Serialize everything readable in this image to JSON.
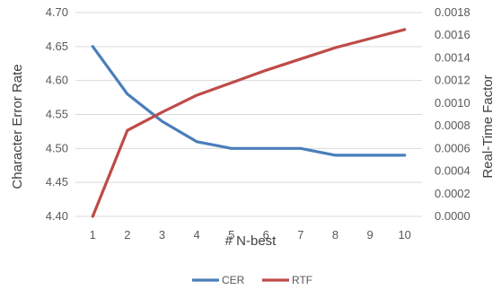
{
  "chart_data": {
    "type": "line",
    "x": [
      1,
      2,
      3,
      4,
      5,
      6,
      7,
      8,
      9,
      10
    ],
    "xlabel": "# N-best",
    "ylabel": "Character Error Rate",
    "y2label": "Real-Time Factor",
    "ylim": [
      4.4,
      4.7
    ],
    "y2lim": [
      0,
      0.0018
    ],
    "yticks": [
      "4.40",
      "4.45",
      "4.50",
      "4.55",
      "4.60",
      "4.65",
      "4.70"
    ],
    "y2ticks": [
      "0.0000",
      "0.0002",
      "0.0004",
      "0.0006",
      "0.0008",
      "0.0010",
      "0.0012",
      "0.0014",
      "0.0016",
      "0.0018"
    ],
    "xticks": [
      "1",
      "2",
      "3",
      "4",
      "5",
      "6",
      "7",
      "8",
      "9",
      "10"
    ],
    "grid": true,
    "legend": "bottom",
    "series": [
      {
        "name": "CER",
        "axis": "left",
        "color": "#4a7ebb",
        "values": [
          4.65,
          4.58,
          4.54,
          4.51,
          4.5,
          4.5,
          4.5,
          4.49,
          4.49,
          4.49
        ]
      },
      {
        "name": "RTF",
        "axis": "right",
        "color": "#be4b48",
        "values": [
          0.0,
          0.00076,
          0.00092,
          0.00107,
          0.00118,
          0.00129,
          0.00139,
          0.00149,
          0.00157,
          0.00165
        ]
      }
    ]
  }
}
